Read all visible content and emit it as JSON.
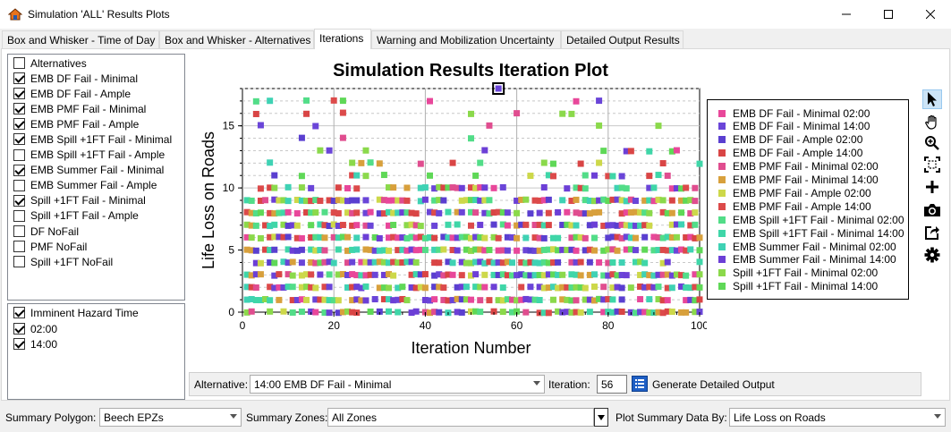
{
  "window": {
    "title": "Simulation 'ALL' Results Plots",
    "min_icon": "minimize-icon",
    "max_icon": "maximize-icon",
    "close_icon": "close-icon"
  },
  "tabs": [
    {
      "label": "Box and Whisker - Time of Day",
      "active": false
    },
    {
      "label": "Box and Whisker - Alternatives",
      "active": false
    },
    {
      "label": "Iterations",
      "active": true
    },
    {
      "label": "Warning and Mobilization Uncertainty",
      "active": false
    },
    {
      "label": "Detailed Output Results",
      "active": false
    }
  ],
  "alternatives": {
    "header": "Alternatives",
    "header_checked": false,
    "items": [
      {
        "label": "EMB DF Fail - Minimal",
        "checked": true
      },
      {
        "label": "EMB DF Fail - Ample",
        "checked": true
      },
      {
        "label": "EMB PMF Fail - Minimal",
        "checked": true
      },
      {
        "label": "EMB PMF Fail - Ample",
        "checked": true
      },
      {
        "label": "EMB Spill +1FT Fail - Minimal",
        "checked": true
      },
      {
        "label": "EMB Spill +1FT Fail - Ample",
        "checked": false
      },
      {
        "label": "EMB Summer Fail - Minimal",
        "checked": true
      },
      {
        "label": "EMB Summer Fail - Ample",
        "checked": false
      },
      {
        "label": "Spill +1FT Fail - Minimal",
        "checked": true
      },
      {
        "label": "Spill +1FT Fail - Ample",
        "checked": false
      },
      {
        "label": "DF NoFail",
        "checked": false
      },
      {
        "label": "PMF NoFail",
        "checked": false
      },
      {
        "label": "Spill +1FT NoFail",
        "checked": false
      }
    ]
  },
  "hazard_time": {
    "header": "Imminent Hazard Time",
    "header_checked": true,
    "items": [
      {
        "label": "02:00",
        "checked": true
      },
      {
        "label": "14:00",
        "checked": true
      }
    ]
  },
  "chart_data": {
    "type": "scatter",
    "title": "Simulation Results Iteration Plot",
    "xlabel": "Iteration Number",
    "ylabel": "Life Loss on Roads",
    "xlim": [
      0,
      100
    ],
    "ylim": [
      0,
      18
    ],
    "x_ticks": [
      "0",
      "20",
      "40",
      "60",
      "80",
      "100"
    ],
    "y_ticks": [
      "0",
      "5",
      "10",
      "15"
    ],
    "grid": true,
    "legend_position": "right",
    "highlighted_point": {
      "x": 56,
      "y": 18
    },
    "series": [
      {
        "name": "EMB DF Fail - Minimal 02:00",
        "color": "#e8479a"
      },
      {
        "name": "EMB DF Fail - Minimal 14:00",
        "color": "#6a45d8"
      },
      {
        "name": "EMB DF Fail - Ample 02:00",
        "color": "#5a3fd0"
      },
      {
        "name": "EMB DF Fail - Ample 14:00",
        "color": "#d94545"
      },
      {
        "name": "EMB PMF Fail - Minimal 02:00",
        "color": "#e04d8f"
      },
      {
        "name": "EMB PMF Fail - Minimal 14:00",
        "color": "#d8a03c"
      },
      {
        "name": "EMB PMF Fail - Ample 02:00",
        "color": "#cdd84a"
      },
      {
        "name": "EMB PMF Fail - Ample 14:00",
        "color": "#dc4a4a"
      },
      {
        "name": "EMB Spill +1FT Fail - Minimal 02:00",
        "color": "#52dd88"
      },
      {
        "name": "EMB Spill +1FT Fail - Minimal 14:00",
        "color": "#3fd6a8"
      },
      {
        "name": "EMB Summer Fail - Minimal 02:00",
        "color": "#3fd2b4"
      },
      {
        "name": "EMB Summer Fail - Minimal 14:00",
        "color": "#6c3fd6"
      },
      {
        "name": "Spill +1FT Fail - Minimal 02:00",
        "color": "#8bd94b"
      },
      {
        "name": "Spill +1FT Fail - Minimal 14:00",
        "color": "#5fd857"
      }
    ]
  },
  "toolbar": {
    "tools": [
      "pointer-icon",
      "pan-hand-icon",
      "zoom-icon",
      "zoom-fit-icon",
      "crosshair-icon",
      "camera-icon",
      "export-icon",
      "settings-icon"
    ]
  },
  "selector": {
    "alternative_label": "Alternative:",
    "alternative_value": "14:00 EMB DF Fail - Minimal",
    "iteration_label": "Iteration:",
    "iteration_value": "56",
    "generate_label": "Generate Detailed Output"
  },
  "summary": {
    "polygon_label": "Summary Polygon:",
    "polygon_value": "Beech EPZs",
    "zones_label": "Summary Zones:",
    "zones_value": "All Zones",
    "plot_by_label": "Plot Summary Data By:",
    "plot_by_value": "Life Loss on Roads"
  }
}
